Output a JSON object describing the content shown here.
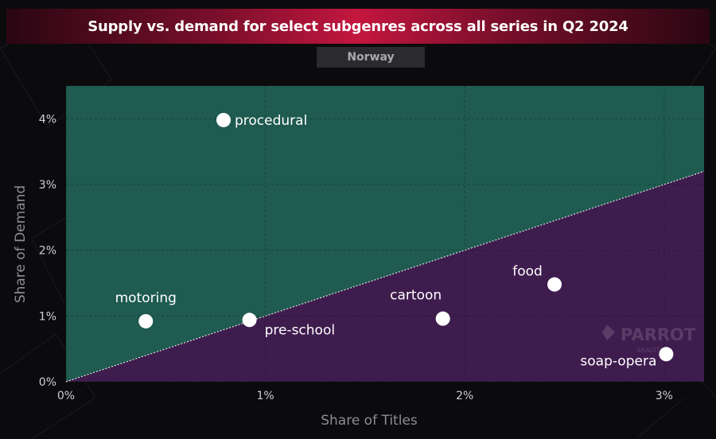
{
  "chart_data": {
    "type": "scatter",
    "title": "Supply vs. demand for select subgenres across all series in Q2 2024",
    "subtitle": "Norway",
    "xlabel": "Share of Titles",
    "ylabel": "Share of Demand",
    "xlim": [
      0,
      3.2
    ],
    "ylim": [
      0,
      4.5
    ],
    "x_ticks": [
      "0%",
      "1%",
      "2%",
      "3%"
    ],
    "y_ticks": [
      "0%",
      "1%",
      "2%",
      "3%",
      "4%"
    ],
    "reference_line": "y = x",
    "region_colors": {
      "above": "#1f5b50",
      "below": "#3f1c4e"
    },
    "marker_color": "#ffffff",
    "points": [
      {
        "label": "procedural",
        "x": 0.79,
        "y": 3.98
      },
      {
        "label": "motoring",
        "x": 0.4,
        "y": 0.92
      },
      {
        "label": "pre-school",
        "x": 0.92,
        "y": 0.94
      },
      {
        "label": "cartoon",
        "x": 1.89,
        "y": 0.96
      },
      {
        "label": "food",
        "x": 2.45,
        "y": 1.48
      },
      {
        "label": "soap-opera",
        "x": 3.01,
        "y": 0.42
      }
    ],
    "grid": true
  },
  "watermark": {
    "brand": "PARROT",
    "sub": "ANALYTICS"
  }
}
